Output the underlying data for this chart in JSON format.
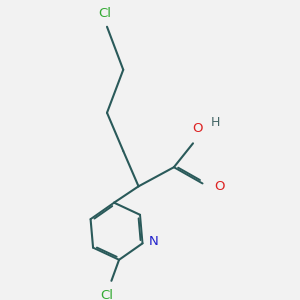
{
  "background_color": "#f2f2f2",
  "atom_colors": {
    "Cl": "#33aa33",
    "O_red": "#dd2222",
    "O_OH": "#dd2222",
    "N": "#2222cc",
    "H": "#446666",
    "bond": "#2a5a5a"
  },
  "bond_lw": 1.5,
  "dbo": 0.018,
  "figsize": [
    3.0,
    3.0
  ],
  "dpi": 100
}
